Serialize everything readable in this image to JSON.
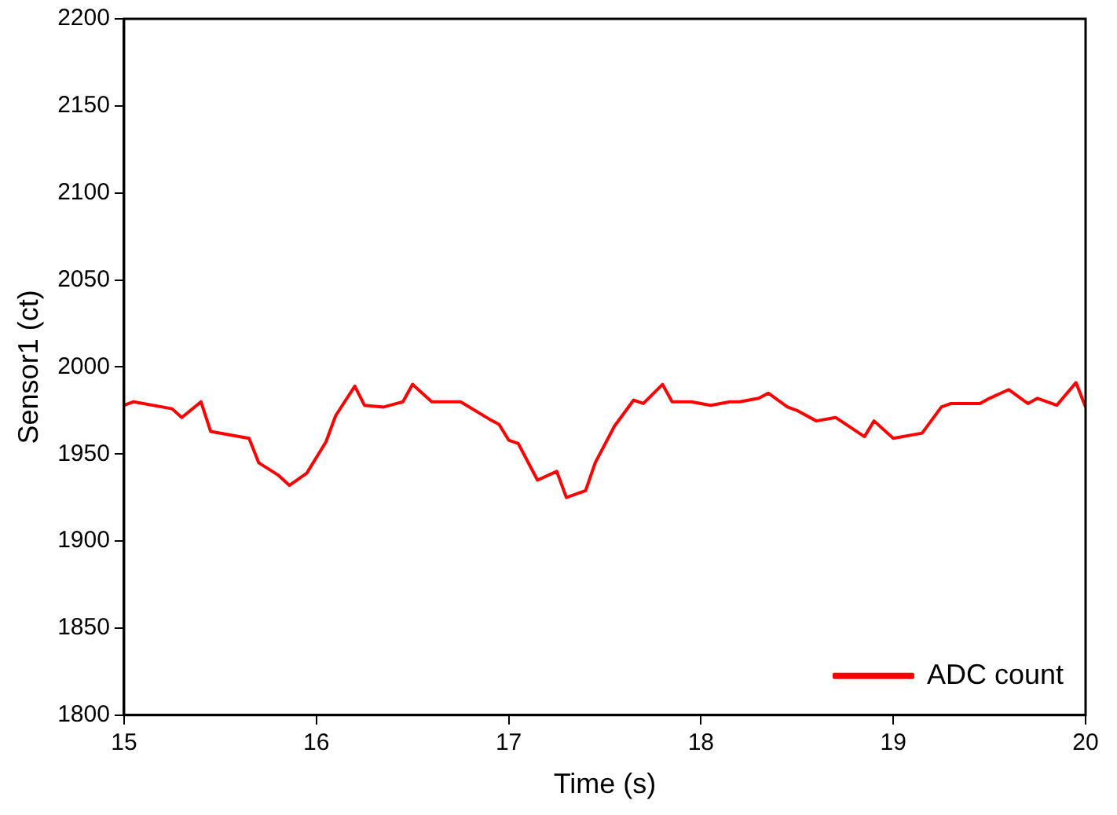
{
  "chart_data": {
    "type": "line",
    "xlabel": "Time (s)",
    "ylabel": "Sensor1 (ct)",
    "xlim": [
      15,
      20
    ],
    "xticks": [
      15,
      16,
      17,
      18,
      19,
      20
    ],
    "ylim": [
      1800,
      2200
    ],
    "yticks": [
      1800,
      1850,
      1900,
      1950,
      2000,
      2050,
      2100,
      2150,
      2200
    ],
    "grid": false,
    "legend": "bottom right",
    "marker": "none",
    "line_style": "solid",
    "series": [
      {
        "name": "ADC count",
        "color": "#ff0000",
        "x": [
          15.0,
          15.05,
          15.25,
          15.3,
          15.4,
          15.45,
          15.65,
          15.7,
          15.8,
          15.86,
          15.95,
          16.05,
          16.1,
          16.2,
          16.25,
          16.35,
          16.45,
          16.5,
          16.6,
          16.75,
          16.9,
          16.95,
          17.0,
          17.05,
          17.15,
          17.25,
          17.3,
          17.4,
          17.45,
          17.55,
          17.65,
          17.7,
          17.8,
          17.85,
          17.95,
          18.05,
          18.15,
          18.2,
          18.3,
          18.35,
          18.45,
          18.5,
          18.6,
          18.7,
          18.85,
          18.9,
          19.0,
          19.15,
          19.25,
          19.3,
          19.45,
          19.5,
          19.6,
          19.7,
          19.75,
          19.85,
          19.95,
          20.0
        ],
        "values": [
          1978,
          1980,
          1976,
          1971,
          1980,
          1963,
          1959,
          1945,
          1938,
          1932,
          1939,
          1957,
          1972,
          1989,
          1978,
          1977,
          1980,
          1990,
          1980,
          1980,
          1970,
          1967,
          1958,
          1956,
          1935,
          1940,
          1925,
          1929,
          1945,
          1966,
          1981,
          1979,
          1990,
          1980,
          1980,
          1978,
          1980,
          1980,
          1982,
          1985,
          1977,
          1975,
          1969,
          1971,
          1960,
          1969,
          1959,
          1962,
          1977,
          1979,
          1979,
          1982,
          1987,
          1979,
          1982,
          1978,
          1991,
          1977
        ]
      }
    ]
  }
}
